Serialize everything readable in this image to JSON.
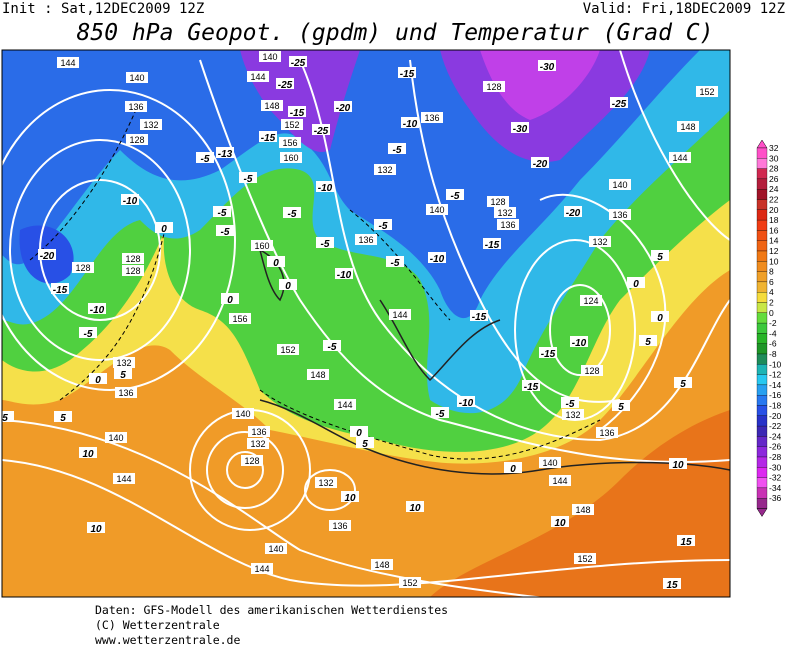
{
  "header": {
    "init": "Init : Sat,12DEC2009 12Z",
    "valid": "Valid: Fri,18DEC2009 12Z",
    "title": "850 hPa Geopot. (gpdm) und Temperatur (Grad C)"
  },
  "map": {
    "height_labels": [
      "144",
      "140",
      "144",
      "140",
      "136",
      "132",
      "128",
      "148",
      "152",
      "156",
      "160",
      "136",
      "132",
      "128",
      "152",
      "148",
      "144",
      "140",
      "136",
      "132",
      "140",
      "136",
      "132",
      "136",
      "128",
      "128",
      "128",
      "128",
      "160",
      "156",
      "152",
      "148",
      "144",
      "144",
      "140",
      "136",
      "132",
      "128",
      "124",
      "128",
      "132",
      "136",
      "132",
      "136",
      "140",
      "144",
      "132",
      "136",
      "140",
      "144",
      "148",
      "152",
      "144",
      "140",
      "148",
      "152"
    ],
    "temperature_labels": [
      "-25",
      "-25",
      "-20",
      "-25",
      "-30",
      "-25",
      "-30",
      "-15",
      "-10",
      "-5",
      "-20",
      "-20",
      "-15",
      "-10",
      "-5",
      "-5",
      "-5",
      "-10",
      "-5",
      "-15",
      "-15",
      "-13",
      "-5",
      "-5",
      "-10",
      "-5",
      "-5",
      "-5",
      "-10",
      "-20",
      "-15",
      "-10",
      "-5",
      "0",
      "0",
      "0",
      "0",
      "-15",
      "-5",
      "-10",
      "-15",
      "-15",
      "-5",
      "-10",
      "-5",
      "0",
      "5",
      "0",
      "5",
      "5",
      "0",
      "5",
      "10",
      "10",
      "10",
      "10",
      "10",
      "5",
      "5",
      "5",
      "10",
      "15",
      "15",
      "5",
      "0",
      "0"
    ]
  },
  "colorbar": {
    "levels": [
      32,
      30,
      28,
      26,
      24,
      22,
      20,
      18,
      16,
      14,
      12,
      10,
      8,
      6,
      4,
      2,
      0,
      -2,
      -4,
      -6,
      -8,
      -10,
      -12,
      -14,
      -16,
      -18,
      -20,
      -22,
      -24,
      -26,
      -28,
      -30,
      -32,
      -34,
      -36
    ],
    "colors": [
      "#ff50c8",
      "#ff78d8",
      "#d02850",
      "#b41e3c",
      "#a01428",
      "#c83228",
      "#dc2814",
      "#f03c14",
      "#f05014",
      "#f06414",
      "#f07814",
      "#f08c1e",
      "#f0a028",
      "#f0b432",
      "#f5dc3c",
      "#c8e646",
      "#64dc3c",
      "#3cc83c",
      "#28b428",
      "#1e9628",
      "#1e8c5a",
      "#1eb4b4",
      "#28c8f0",
      "#28a0f0",
      "#2878f0",
      "#2850e6",
      "#2832c8",
      "#3c28b4",
      "#6428c8",
      "#8c28dc",
      "#b428e6",
      "#dc28f0",
      "#f050f0",
      "#c832b4",
      "#96288c"
    ]
  },
  "footer": {
    "line1": "Daten: GFS-Modell des amerikanischen Wetterdienstes",
    "line2": "(C) Wetterzentrale",
    "line3": "www.wetterzentrale.de"
  }
}
